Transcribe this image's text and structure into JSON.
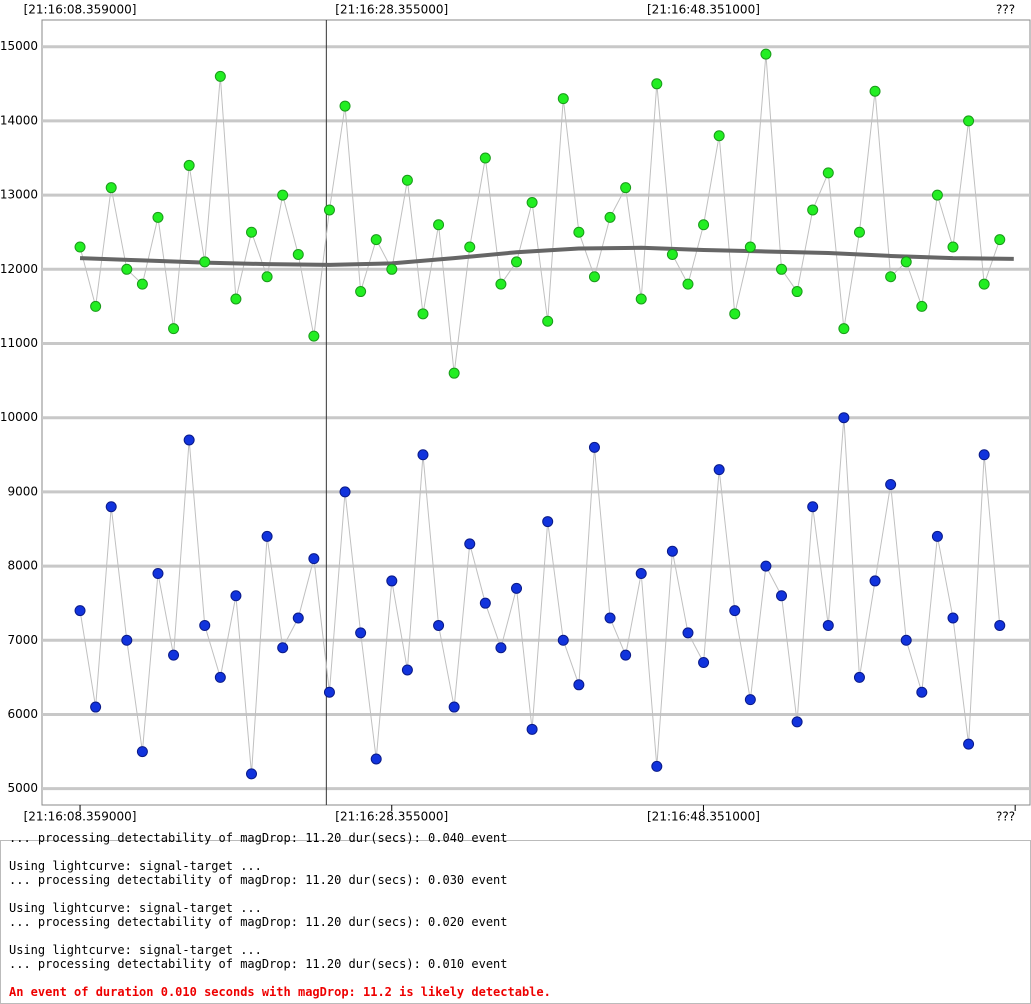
{
  "chart_data": {
    "type": "scatter",
    "x": [
      0,
      1,
      2,
      3,
      4,
      5,
      6,
      7,
      8,
      9,
      10,
      11,
      12,
      13,
      14,
      15,
      16,
      17,
      18,
      19,
      20,
      21,
      22,
      23,
      24,
      25,
      26,
      27,
      28,
      29,
      30,
      31,
      32,
      33,
      34,
      35,
      36,
      37,
      38,
      39,
      40,
      41,
      42,
      43,
      44,
      45,
      46,
      47,
      48,
      49,
      50,
      51,
      52,
      53,
      54,
      55,
      56,
      57,
      58,
      59
    ],
    "series": [
      {
        "color": "#22ee22",
        "edge": "#1a9a1a",
        "values": [
          12300,
          11500,
          13100,
          12000,
          11800,
          12700,
          11200,
          13400,
          12100,
          14600,
          11600,
          12500,
          11900,
          13000,
          12200,
          11100,
          12800,
          14200,
          11700,
          12400,
          12000,
          13200,
          11400,
          12600,
          10600,
          12300,
          13500,
          11800,
          12100,
          12900,
          11300,
          14300,
          12500,
          11900,
          12700,
          13100,
          11600,
          14500,
          12200,
          11800,
          12600,
          13800,
          11400,
          12300,
          14900,
          12000,
          11700,
          12800,
          13300,
          11200,
          12500,
          14400,
          11900,
          12100,
          11500,
          13000,
          12300,
          14000,
          11800,
          12400
        ]
      },
      {
        "color": "#1133dd",
        "edge": "#0a1a88",
        "values": [
          7400,
          6100,
          8800,
          7000,
          5500,
          7900,
          6800,
          9700,
          7200,
          6500,
          7600,
          5200,
          8400,
          6900,
          7300,
          8100,
          6300,
          9000,
          7100,
          5400,
          7800,
          6600,
          9500,
          7200,
          6100,
          8300,
          7500,
          6900,
          7700,
          5800,
          8600,
          7000,
          6400,
          9600,
          7300,
          6800,
          7900,
          5300,
          8200,
          7100,
          6700,
          9300,
          7400,
          6200,
          8000,
          7600,
          5900,
          8800,
          7200,
          10000,
          6500,
          7800,
          9100,
          7000,
          6300,
          8400,
          7300,
          5600,
          9500,
          7200
        ]
      }
    ],
    "trend": {
      "color": "#666666",
      "x": [
        0,
        4,
        8,
        12,
        16,
        20,
        24,
        28,
        32,
        36,
        40,
        44,
        48,
        52,
        56,
        59.9
      ],
      "values": [
        12150,
        12120,
        12090,
        12070,
        12060,
        12080,
        12150,
        12230,
        12280,
        12290,
        12260,
        12240,
        12220,
        12180,
        12150,
        12140
      ]
    },
    "xlim": [
      -2.44,
      60.94
    ],
    "xticks": [
      {
        "value": 0,
        "label": "[21:16:08.359000]"
      },
      {
        "value": 19.996,
        "label": "[21:16:28.355000]"
      },
      {
        "value": 39.992,
        "label": "[21:16:48.351000]"
      },
      {
        "value": 59.988,
        "label": "???"
      }
    ],
    "ylim": [
      4780,
      15360
    ],
    "yticks": [
      5000,
      6000,
      7000,
      8000,
      9000,
      10000,
      11000,
      12000,
      13000,
      14000,
      15000
    ],
    "grid": true,
    "cursor_x": 15.8
  },
  "log": {
    "lines": [
      "... processing detectability of magDrop: 11.20 dur(secs): 0.040 event",
      "",
      "Using lightcurve: signal-target ...",
      "... processing detectability of magDrop: 11.20 dur(secs): 0.030 event",
      "",
      "Using lightcurve: signal-target ...",
      "... processing detectability of magDrop: 11.20 dur(secs): 0.020 event",
      "",
      "Using lightcurve: signal-target ...",
      "... processing detectability of magDrop: 11.20 dur(secs): 0.010 event",
      ""
    ],
    "result": "An event of duration 0.010 seconds with magDrop: 11.2 is likely detectable."
  }
}
